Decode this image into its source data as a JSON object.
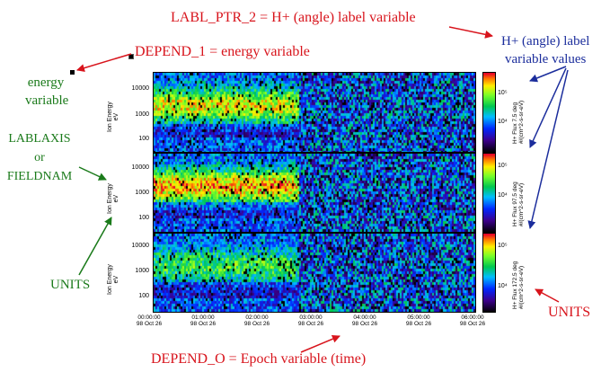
{
  "annotations": {
    "labl_ptr": "LABL_PTR_2 = H+ (angle) label variable",
    "depend_1": "DEPEND_1 = energy variable",
    "energy_line1": "energy",
    "energy_line2": "variable",
    "hplus_line1": "H+ (angle) label",
    "hplus_line2": "variable values",
    "lablaxis_line1": "LABLAXIS",
    "lablaxis_line2": "or",
    "lablaxis_line3": "FIELDNAM",
    "units_left": "UNITS",
    "units_right": "UNITS",
    "depend_0": "DEPEND_O = Epoch variable (time)"
  },
  "colors": {
    "red": "#d8141c",
    "green": "#1a7a1a",
    "blue": "#1b2d9c"
  },
  "plot": {
    "panels": [
      {
        "ylabel_line1": "Ion Energy",
        "ylabel_line2": "eV",
        "yticks": [
          "10000",
          "1000",
          "100"
        ],
        "cb_label_line1": "H+ Flux 7.5 deg",
        "cb_label_line2": "#/(cm^2-s-sr-eV)",
        "cb_ticks": [
          "10⁵",
          "10⁴"
        ],
        "intensity": 0.85
      },
      {
        "ylabel_line1": "Ion Energy",
        "ylabel_line2": "eV",
        "yticks": [
          "10000",
          "1000",
          "100"
        ],
        "cb_label_line1": "H+ Flux 97.5 deg",
        "cb_label_line2": "#/(cm^2-s-sr-eV)",
        "cb_ticks": [
          "10⁵",
          "10⁴"
        ],
        "intensity": 1.0
      },
      {
        "ylabel_line1": "Ion Energy",
        "ylabel_line2": "eV",
        "yticks": [
          "10000",
          "1000",
          "100"
        ],
        "cb_label_line1": "H+ Flux 172.5 deg",
        "cb_label_line2": "#/(cm^2-s-sr-eV)",
        "cb_ticks": [
          "10⁵",
          "10⁴"
        ],
        "intensity": 0.55
      }
    ],
    "xticks": [
      {
        "time": "00:00:00",
        "date": "98 Oct 26"
      },
      {
        "time": "01:00:00",
        "date": "98 Oct 26"
      },
      {
        "time": "02:00:00",
        "date": "98 Oct 26"
      },
      {
        "time": "03:00:00",
        "date": "98 Oct 26"
      },
      {
        "time": "04:00:00",
        "date": "98 Oct 26"
      },
      {
        "time": "05:00:00",
        "date": "98 Oct 26"
      },
      {
        "time": "06:00:00",
        "date": "98 Oct 26"
      }
    ]
  }
}
